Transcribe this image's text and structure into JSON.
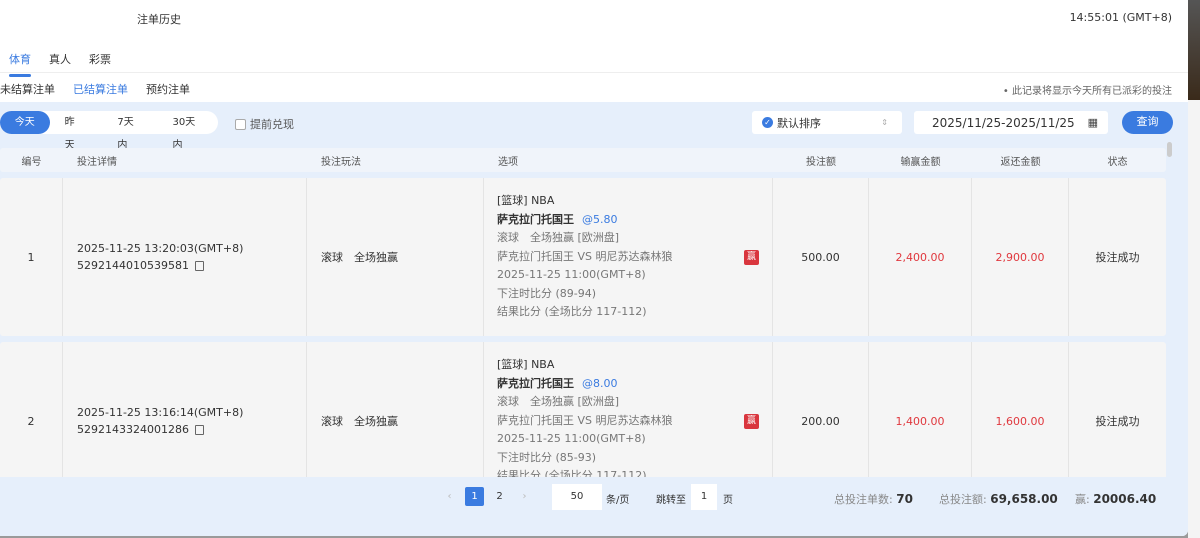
{
  "header": {
    "title": "注单历史",
    "time": "14:55:01 (GMT+8)"
  },
  "tabs": [
    {
      "label": "体育",
      "active": true
    },
    {
      "label": "真人"
    },
    {
      "label": "彩票"
    }
  ],
  "subtabs": [
    {
      "label": "未结算注单"
    },
    {
      "label": "已结算注单",
      "active": true
    },
    {
      "label": "预约注单"
    }
  ],
  "note": "• 此记录将显示今天所有已派彩的投注",
  "filters": {
    "ranges": [
      "今天",
      "昨天",
      "7天内",
      "30天内"
    ],
    "early_cashout": "提前兑现",
    "sort": "默认排序",
    "date_range": "2025/11/25-2025/11/25",
    "query": "查询"
  },
  "columns": [
    "编号",
    "投注详情",
    "投注玩法",
    "选项",
    "投注额",
    "输赢金额",
    "返还金额",
    "状态"
  ],
  "rows": [
    {
      "no": "1",
      "time": "2025-11-25 13:20:03(GMT+8)",
      "id": "5292144010539581",
      "play": "滚球　全场独赢",
      "league": "[篮球] NBA",
      "team": "萨克拉门托国王",
      "odds": "@5.80",
      "market": "滚球　全场独赢 [欧洲盘]",
      "match": "萨克拉门托国王 VS 明尼苏达森林狼",
      "match_time": "2025-11-25 11:00(GMT+8)",
      "bet_score": "下注时比分 (89-94)",
      "result": "结果比分 (全场比分 117-112)",
      "badge": "赢",
      "stake": "500.00",
      "win_loss": "2,400.00",
      "payout": "2,900.00",
      "status": "投注成功"
    },
    {
      "no": "2",
      "time": "2025-11-25 13:16:14(GMT+8)",
      "id": "5292143324001286",
      "play": "滚球　全场独赢",
      "league": "[篮球] NBA",
      "team": "萨克拉门托国王",
      "odds": "@8.00",
      "market": "滚球　全场独赢 [欧洲盘]",
      "match": "萨克拉门托国王 VS 明尼苏达森林狼",
      "match_time": "2025-11-25 11:00(GMT+8)",
      "bet_score": "下注时比分 (85-93)",
      "result": "结果比分 (全场比分 117-112)",
      "badge": "赢",
      "stake": "200.00",
      "win_loss": "1,400.00",
      "payout": "1,600.00",
      "status": "投注成功"
    }
  ],
  "pagination": {
    "prev": "‹",
    "pages": [
      "1",
      "2"
    ],
    "current": "1",
    "next": "›",
    "page_size": "50",
    "per_page_label": "条/页",
    "jump_label": "跳转至",
    "jump_value": "1",
    "page_label": "页"
  },
  "summary": {
    "count_label": "总投注单数:",
    "count": "70",
    "total_label": "总投注额:",
    "total": "69,658.00",
    "win_label": "赢:",
    "win": "20006.40"
  },
  "colors": {
    "accent": "#3a7be0",
    "loss_red": "#e0383e"
  }
}
